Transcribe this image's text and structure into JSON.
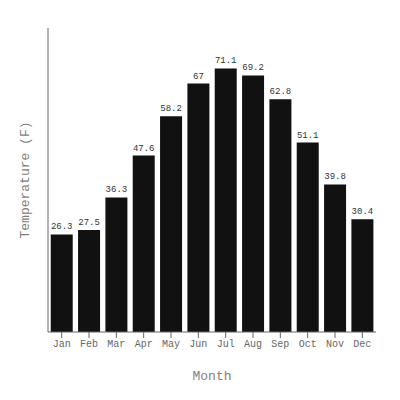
{
  "chart_data": {
    "type": "bar",
    "categories": [
      "Jan",
      "Feb",
      "Mar",
      "Apr",
      "May",
      "Jun",
      "Jul",
      "Aug",
      "Sep",
      "Oct",
      "Nov",
      "Dec"
    ],
    "values": [
      26.3,
      27.5,
      36.3,
      47.6,
      58.2,
      67.0,
      71.1,
      69.2,
      62.8,
      51.1,
      39.8,
      30.4
    ],
    "color": "#111111",
    "xlabel": "Month",
    "ylabel": "Temperature (F)",
    "ylim": [
      0,
      82
    ],
    "yticks": [],
    "grid": false,
    "data_labels": true,
    "tick_labels": "x"
  }
}
